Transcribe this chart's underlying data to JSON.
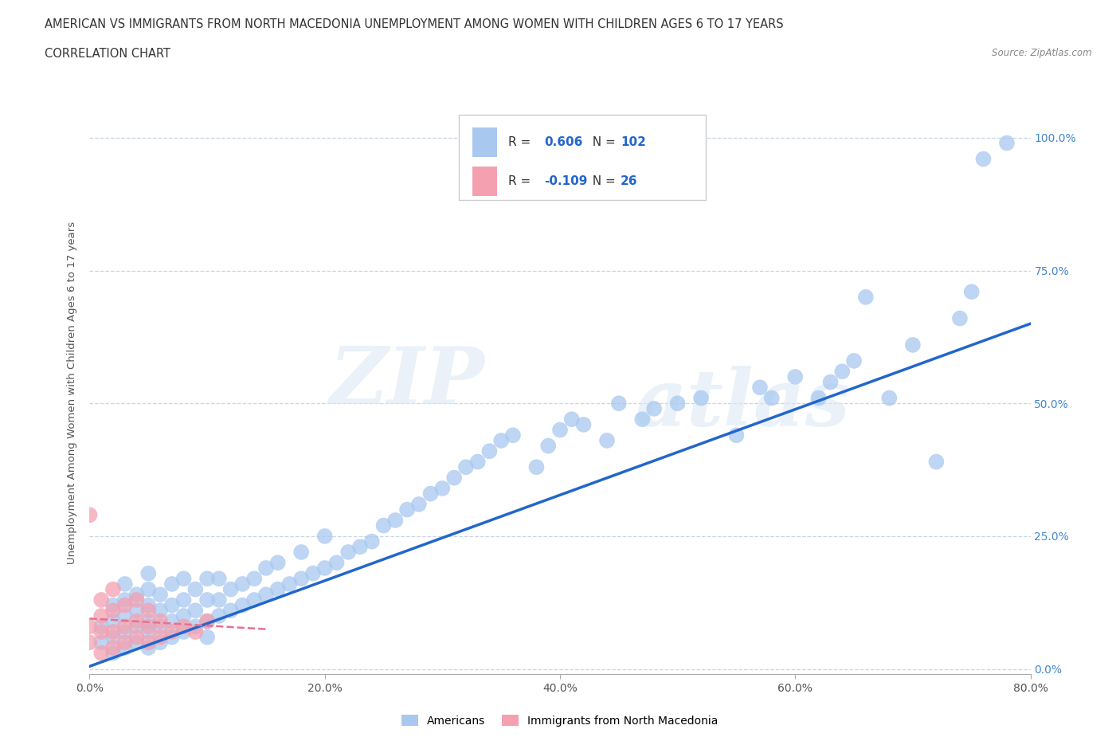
{
  "title_line1": "AMERICAN VS IMMIGRANTS FROM NORTH MACEDONIA UNEMPLOYMENT AMONG WOMEN WITH CHILDREN AGES 6 TO 17 YEARS",
  "title_line2": "CORRELATION CHART",
  "source": "Source: ZipAtlas.com",
  "ylabel": "Unemployment Among Women with Children Ages 6 to 17 years",
  "xlim": [
    0.0,
    0.8
  ],
  "ylim": [
    -0.01,
    1.05
  ],
  "xticks": [
    0.0,
    0.2,
    0.4,
    0.6,
    0.8
  ],
  "xticklabels": [
    "0.0%",
    "20.0%",
    "40.0%",
    "60.0%",
    "80.0%"
  ],
  "yticks": [
    0.0,
    0.25,
    0.5,
    0.75,
    1.0
  ],
  "yticklabels": [
    "0.0%",
    "25.0%",
    "50.0%",
    "75.0%",
    "100.0%"
  ],
  "legend_r_american": "0.606",
  "legend_n_american": "102",
  "legend_r_immigrant": "-0.109",
  "legend_n_immigrant": "26",
  "american_color": "#a8c8f0",
  "immigrant_color": "#f4a0b0",
  "american_line_color": "#2266cc",
  "immigrant_line_color": "#e87090",
  "watermark_zip": "ZIP",
  "watermark_atlas": "atlas",
  "background_color": "#ffffff",
  "grid_color": "#bbccdd",
  "american_scatter_x": [
    0.01,
    0.01,
    0.02,
    0.02,
    0.02,
    0.02,
    0.03,
    0.03,
    0.03,
    0.03,
    0.03,
    0.04,
    0.04,
    0.04,
    0.04,
    0.05,
    0.05,
    0.05,
    0.05,
    0.05,
    0.05,
    0.06,
    0.06,
    0.06,
    0.06,
    0.07,
    0.07,
    0.07,
    0.07,
    0.08,
    0.08,
    0.08,
    0.08,
    0.09,
    0.09,
    0.09,
    0.1,
    0.1,
    0.1,
    0.1,
    0.11,
    0.11,
    0.11,
    0.12,
    0.12,
    0.13,
    0.13,
    0.14,
    0.14,
    0.15,
    0.15,
    0.16,
    0.16,
    0.17,
    0.18,
    0.18,
    0.19,
    0.2,
    0.2,
    0.21,
    0.22,
    0.23,
    0.24,
    0.25,
    0.26,
    0.27,
    0.28,
    0.29,
    0.3,
    0.31,
    0.32,
    0.33,
    0.34,
    0.35,
    0.36,
    0.38,
    0.39,
    0.4,
    0.41,
    0.42,
    0.44,
    0.45,
    0.47,
    0.48,
    0.5,
    0.52,
    0.55,
    0.57,
    0.58,
    0.6,
    0.62,
    0.63,
    0.64,
    0.65,
    0.66,
    0.68,
    0.7,
    0.72,
    0.74,
    0.75,
    0.76,
    0.78
  ],
  "american_scatter_y": [
    0.05,
    0.08,
    0.03,
    0.06,
    0.09,
    0.12,
    0.04,
    0.07,
    0.1,
    0.13,
    0.16,
    0.05,
    0.08,
    0.11,
    0.14,
    0.04,
    0.07,
    0.09,
    0.12,
    0.15,
    0.18,
    0.05,
    0.08,
    0.11,
    0.14,
    0.06,
    0.09,
    0.12,
    0.16,
    0.07,
    0.1,
    0.13,
    0.17,
    0.08,
    0.11,
    0.15,
    0.06,
    0.09,
    0.13,
    0.17,
    0.1,
    0.13,
    0.17,
    0.11,
    0.15,
    0.12,
    0.16,
    0.13,
    0.17,
    0.14,
    0.19,
    0.15,
    0.2,
    0.16,
    0.17,
    0.22,
    0.18,
    0.19,
    0.25,
    0.2,
    0.22,
    0.23,
    0.24,
    0.27,
    0.28,
    0.3,
    0.31,
    0.33,
    0.34,
    0.36,
    0.38,
    0.39,
    0.41,
    0.43,
    0.44,
    0.38,
    0.42,
    0.45,
    0.47,
    0.46,
    0.43,
    0.5,
    0.47,
    0.49,
    0.5,
    0.51,
    0.44,
    0.53,
    0.51,
    0.55,
    0.51,
    0.54,
    0.56,
    0.58,
    0.7,
    0.51,
    0.61,
    0.39,
    0.66,
    0.71,
    0.96,
    0.99
  ],
  "immigrant_scatter_x": [
    0.0,
    0.0,
    0.0,
    0.01,
    0.01,
    0.01,
    0.01,
    0.02,
    0.02,
    0.02,
    0.02,
    0.03,
    0.03,
    0.03,
    0.04,
    0.04,
    0.04,
    0.05,
    0.05,
    0.05,
    0.06,
    0.06,
    0.07,
    0.08,
    0.09,
    0.1
  ],
  "immigrant_scatter_y": [
    0.29,
    0.05,
    0.08,
    0.03,
    0.07,
    0.1,
    0.13,
    0.04,
    0.07,
    0.11,
    0.15,
    0.05,
    0.08,
    0.12,
    0.06,
    0.09,
    0.13,
    0.05,
    0.08,
    0.11,
    0.06,
    0.09,
    0.07,
    0.08,
    0.07,
    0.09
  ],
  "american_trend_x": [
    0.0,
    0.8
  ],
  "american_trend_y": [
    0.005,
    0.65
  ],
  "immigrant_trend_x": [
    0.0,
    0.15
  ],
  "immigrant_trend_y": [
    0.095,
    0.075
  ]
}
